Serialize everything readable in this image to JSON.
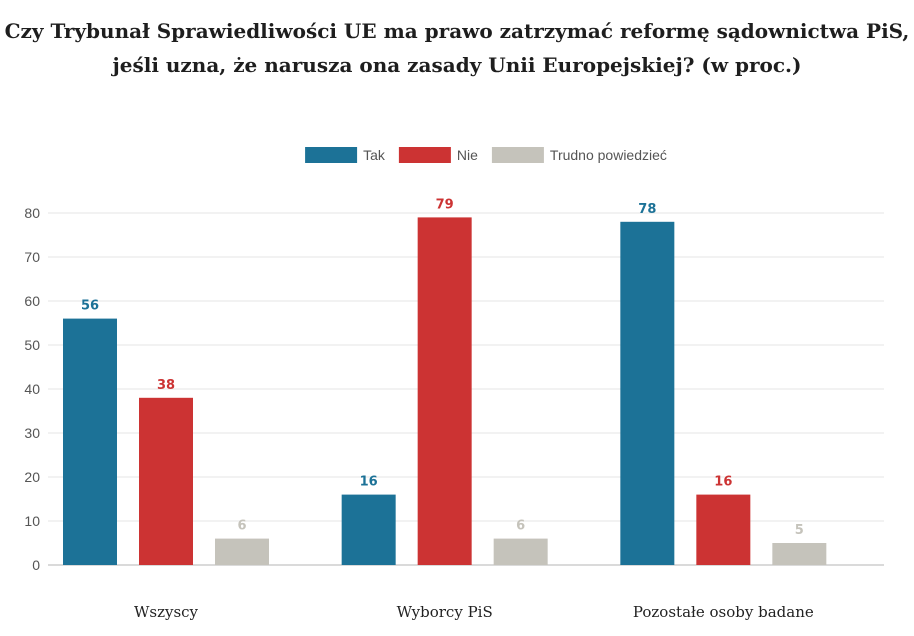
{
  "chart_data": {
    "type": "bar",
    "title_lines": [
      "Czy Trybunał Sprawiedliwości UE ma prawo zatrzymać reformę sądownictwa PiS,",
      "jeśli uzna, że narusza ona zasady Unii Europejskiej? (w proc.)"
    ],
    "categories": [
      "Wszyscy",
      "Wyborcy PiS",
      "Pozostałe osoby badane"
    ],
    "series": [
      {
        "name": "Tak",
        "color": "#1c7297",
        "values": [
          56,
          16,
          78
        ]
      },
      {
        "name": "Nie",
        "color": "#cc3333",
        "values": [
          38,
          79,
          16
        ]
      },
      {
        "name": "Trudno powiedzieć",
        "color": "#c5c3bb",
        "values": [
          6,
          6,
          5
        ]
      }
    ],
    "ylim": [
      0,
      80
    ],
    "yticks": [
      0,
      10,
      20,
      30,
      40,
      50,
      60,
      70,
      80
    ],
    "grid": true,
    "legend_position": "top-center",
    "data_labels": true
  }
}
